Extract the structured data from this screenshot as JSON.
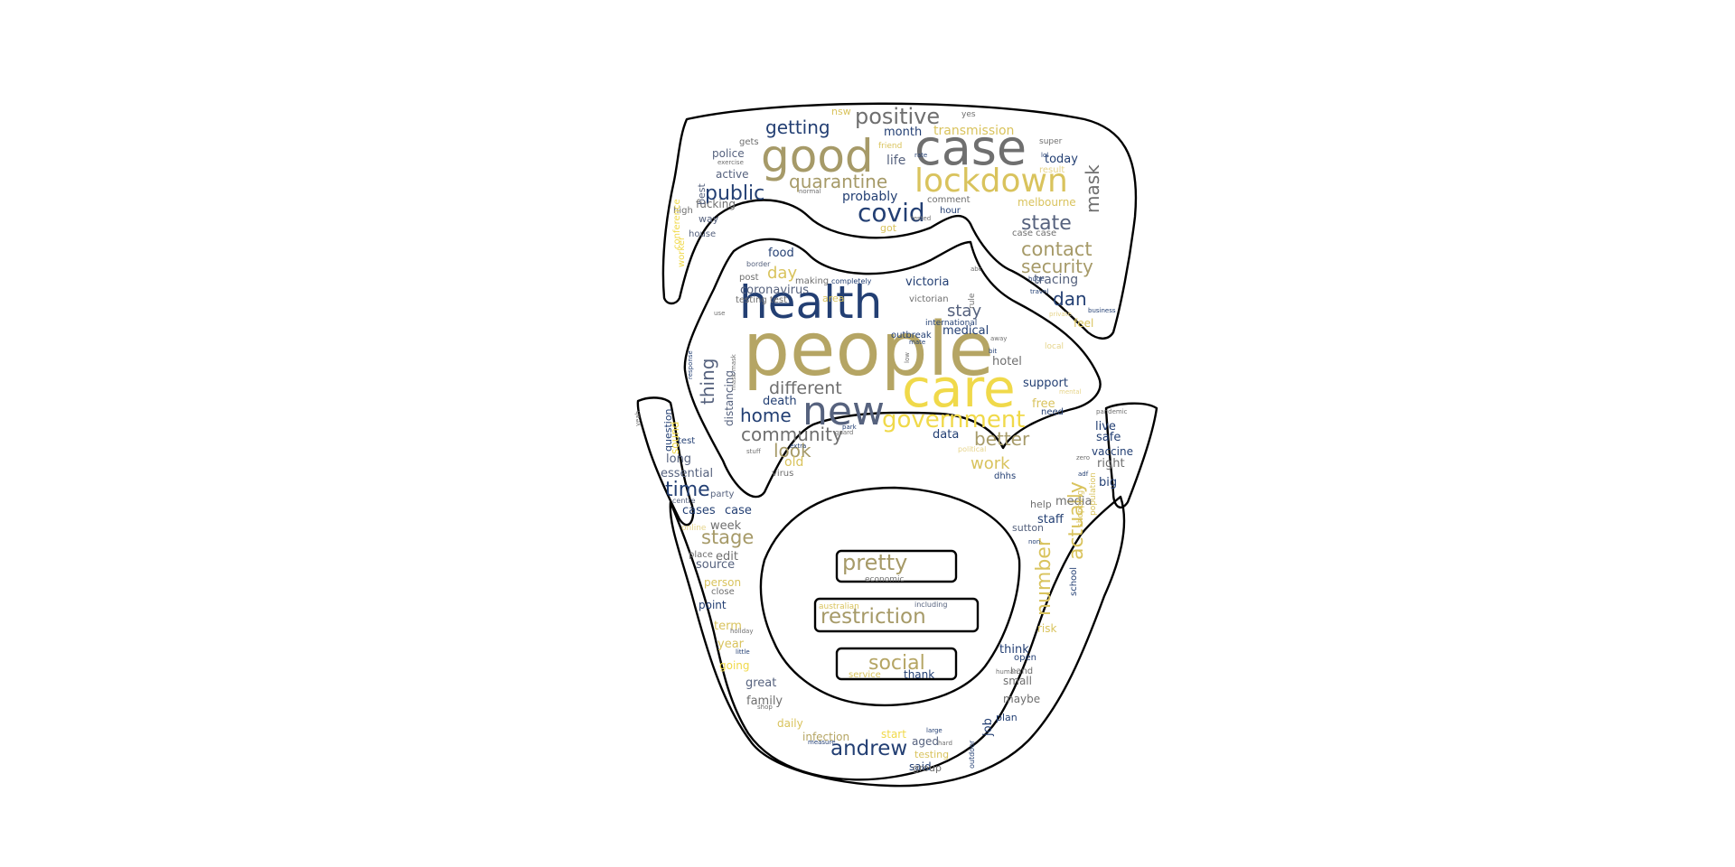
{
  "palette": {
    "navy": "#233f73",
    "slate": "#4f5a72",
    "gray": "#6f6f6f",
    "khaki": "#a69a68",
    "olive": "#b5a564",
    "gold": "#d9c35d",
    "yellow": "#f0d94a",
    "lightgold": "#e6d48a",
    "steel": "#56627e",
    "outline": "#000000",
    "background": "#ffffff"
  },
  "words": [
    {
      "text": "people",
      "c": "olive"
    },
    {
      "text": "health",
      "c": "navy"
    },
    {
      "text": "case",
      "c": "gray"
    },
    {
      "text": "care",
      "c": "yellow"
    },
    {
      "text": "good",
      "c": "khaki"
    },
    {
      "text": "new",
      "c": "steel"
    },
    {
      "text": "lockdown",
      "c": "gold"
    },
    {
      "text": "government",
      "c": "yellow"
    },
    {
      "text": "positive",
      "c": "gray"
    },
    {
      "text": "covid",
      "c": "navy"
    },
    {
      "text": "quarantine",
      "c": "khaki"
    },
    {
      "text": "public",
      "c": "navy"
    },
    {
      "text": "getting",
      "c": "navy"
    },
    {
      "text": "transmission",
      "c": "gold"
    },
    {
      "text": "state",
      "c": "steel"
    },
    {
      "text": "contact",
      "c": "khaki"
    },
    {
      "text": "security",
      "c": "khaki"
    },
    {
      "text": "mask",
      "c": "gray"
    },
    {
      "text": "dan",
      "c": "navy"
    },
    {
      "text": "different",
      "c": "gray"
    },
    {
      "text": "home",
      "c": "navy"
    },
    {
      "text": "community",
      "c": "gray"
    },
    {
      "text": "look",
      "c": "khaki"
    },
    {
      "text": "better",
      "c": "khaki"
    },
    {
      "text": "work",
      "c": "gold"
    },
    {
      "text": "thing",
      "c": "steel"
    },
    {
      "text": "stay",
      "c": "steel"
    },
    {
      "text": "day",
      "c": "gold"
    },
    {
      "text": "pretty",
      "c": "khaki"
    },
    {
      "text": "restriction",
      "c": "khaki"
    },
    {
      "text": "social",
      "c": "olive"
    },
    {
      "text": "andrew",
      "c": "navy"
    },
    {
      "text": "time",
      "c": "navy"
    },
    {
      "text": "stage",
      "c": "khaki"
    },
    {
      "text": "number",
      "c": "gold"
    },
    {
      "text": "actually",
      "c": "gold"
    },
    {
      "text": "month",
      "c": "navy"
    },
    {
      "text": "life",
      "c": "steel"
    },
    {
      "text": "probably",
      "c": "navy"
    },
    {
      "text": "melbourne",
      "c": "gold"
    },
    {
      "text": "today",
      "c": "navy"
    },
    {
      "text": "tracing",
      "c": "steel"
    },
    {
      "text": "victoria",
      "c": "navy"
    },
    {
      "text": "medical",
      "c": "navy"
    },
    {
      "text": "hotel",
      "c": "gray"
    },
    {
      "text": "support",
      "c": "navy"
    },
    {
      "text": "free",
      "c": "gold"
    },
    {
      "text": "death",
      "c": "navy"
    },
    {
      "text": "data",
      "c": "navy"
    },
    {
      "text": "old",
      "c": "gold"
    },
    {
      "text": "food",
      "c": "navy"
    },
    {
      "text": "coronavirus",
      "c": "steel"
    },
    {
      "text": "distancing",
      "c": "steel"
    },
    {
      "text": "essential",
      "c": "steel"
    },
    {
      "text": "long",
      "c": "steel"
    },
    {
      "text": "cases",
      "c": "navy"
    },
    {
      "text": "case",
      "c": "navy"
    },
    {
      "text": "week",
      "c": "gray"
    },
    {
      "text": "source",
      "c": "steel"
    },
    {
      "text": "edit",
      "c": "gray"
    },
    {
      "text": "person",
      "c": "gold"
    },
    {
      "text": "point",
      "c": "navy"
    },
    {
      "text": "term",
      "c": "gold"
    },
    {
      "text": "year",
      "c": "gold"
    },
    {
      "text": "going",
      "c": "yellow"
    },
    {
      "text": "great",
      "c": "steel"
    },
    {
      "text": "family",
      "c": "gray"
    },
    {
      "text": "daily",
      "c": "gold"
    },
    {
      "text": "infection",
      "c": "olive"
    },
    {
      "text": "start",
      "c": "yellow"
    },
    {
      "text": "aged",
      "c": "steel"
    },
    {
      "text": "said",
      "c": "navy"
    },
    {
      "text": "testing",
      "c": "gold"
    },
    {
      "text": "group",
      "c": "gray"
    },
    {
      "text": "job",
      "c": "navy"
    },
    {
      "text": "plan",
      "c": "navy"
    },
    {
      "text": "maybe",
      "c": "gray"
    },
    {
      "text": "small",
      "c": "gray"
    },
    {
      "text": "think",
      "c": "navy"
    },
    {
      "text": "risk",
      "c": "gold"
    },
    {
      "text": "open",
      "c": "navy"
    },
    {
      "text": "staff",
      "c": "navy"
    },
    {
      "text": "media",
      "c": "gray"
    },
    {
      "text": "big",
      "c": "navy"
    },
    {
      "text": "right",
      "c": "gray"
    },
    {
      "text": "vaccine",
      "c": "navy"
    },
    {
      "text": "safe",
      "c": "navy"
    },
    {
      "text": "live",
      "c": "navy"
    },
    {
      "text": "help",
      "c": "gray"
    },
    {
      "text": "school",
      "c": "navy"
    },
    {
      "text": "sutton",
      "c": "steel"
    },
    {
      "text": "feel",
      "c": "gold"
    },
    {
      "text": "question",
      "c": "navy"
    },
    {
      "text": "sound",
      "c": "yellow"
    },
    {
      "text": "test",
      "c": "navy"
    },
    {
      "text": "party",
      "c": "steel"
    },
    {
      "text": "virus",
      "c": "gray"
    },
    {
      "text": "dhhs",
      "c": "navy"
    },
    {
      "text": "police",
      "c": "steel"
    },
    {
      "text": "active",
      "c": "steel"
    },
    {
      "text": "fucking",
      "c": "gray"
    },
    {
      "text": "way",
      "c": "steel"
    },
    {
      "text": "best",
      "c": "steel"
    },
    {
      "text": "high",
      "c": "gray"
    },
    {
      "text": "house",
      "c": "steel"
    },
    {
      "text": "worker",
      "c": "yellow"
    },
    {
      "text": "conference",
      "c": "yellow"
    },
    {
      "text": "gets",
      "c": "gray"
    },
    {
      "text": "nsw",
      "c": "gold"
    },
    {
      "text": "yes",
      "c": "gray"
    },
    {
      "text": "super",
      "c": "gray"
    },
    {
      "text": "result",
      "c": "lightgold"
    },
    {
      "text": "hour",
      "c": "navy"
    },
    {
      "text": "comment",
      "c": "gray"
    },
    {
      "text": "got",
      "c": "gold"
    },
    {
      "text": "friend",
      "c": "gold"
    },
    {
      "text": "area",
      "c": "gold"
    },
    {
      "text": "testing test",
      "c": "gray"
    },
    {
      "text": "outbreak",
      "c": "navy"
    },
    {
      "text": "victorian",
      "c": "gray"
    },
    {
      "text": "international",
      "c": "navy"
    },
    {
      "text": "rule",
      "c": "gray"
    },
    {
      "text": "post",
      "c": "gray"
    },
    {
      "text": "making",
      "c": "gray"
    },
    {
      "text": "completely",
      "c": "navy"
    },
    {
      "text": "border",
      "c": "steel"
    },
    {
      "text": "need",
      "c": "navy"
    },
    {
      "text": "local",
      "c": "lightgold"
    },
    {
      "text": "economic",
      "c": "gray"
    },
    {
      "text": "australian",
      "c": "gold"
    },
    {
      "text": "including",
      "c": "steel"
    },
    {
      "text": "service",
      "c": "gold"
    },
    {
      "text": "thank",
      "c": "navy"
    },
    {
      "text": "close",
      "c": "gray"
    },
    {
      "text": "place",
      "c": "gray"
    },
    {
      "text": "online",
      "c": "lightgold"
    },
    {
      "text": "centre",
      "c": "steel"
    },
    {
      "text": "little",
      "c": "navy"
    },
    {
      "text": "holiday",
      "c": "gray"
    },
    {
      "text": "shop",
      "c": "gray"
    },
    {
      "text": "measure",
      "c": "navy"
    },
    {
      "text": "large",
      "c": "navy"
    },
    {
      "text": "hard",
      "c": "gray"
    },
    {
      "text": "outdoor",
      "c": "navy"
    },
    {
      "text": "human",
      "c": "gray"
    },
    {
      "text": "hand",
      "c": "gray"
    },
    {
      "text": "non",
      "c": "navy"
    },
    {
      "text": "shopping",
      "c": "gold"
    },
    {
      "text": "population",
      "c": "gold"
    },
    {
      "text": "pandemic",
      "c": "gray"
    },
    {
      "text": "adf",
      "c": "navy"
    },
    {
      "text": "zero",
      "c": "gray"
    },
    {
      "text": "travel",
      "c": "navy"
    },
    {
      "text": "huge",
      "c": "navy"
    },
    {
      "text": "private",
      "c": "lightgold"
    },
    {
      "text": "business",
      "c": "navy"
    },
    {
      "text": "case case",
      "c": "gray"
    },
    {
      "text": "political",
      "c": "lightgold"
    },
    {
      "text": "stuff",
      "c": "gray"
    },
    {
      "text": "extra",
      "c": "navy"
    },
    {
      "text": "guard",
      "c": "gray"
    },
    {
      "text": "park",
      "c": "navy"
    },
    {
      "text": "low",
      "c": "gray"
    },
    {
      "text": "mate",
      "c": "navy"
    },
    {
      "text": "bit",
      "c": "navy"
    },
    {
      "text": "away",
      "c": "gray"
    },
    {
      "text": "abc",
      "c": "gray"
    },
    {
      "text": "yeah",
      "c": "gray"
    },
    {
      "text": "normal",
      "c": "gray"
    },
    {
      "text": "exercise",
      "c": "gray"
    },
    {
      "text": "lol",
      "c": "navy"
    },
    {
      "text": "rate",
      "c": "navy"
    },
    {
      "text": "tested",
      "c": "gray"
    },
    {
      "text": "mental",
      "c": "lightgold"
    },
    {
      "text": "response",
      "c": "navy"
    },
    {
      "text": "mask mask",
      "c": "gray"
    },
    {
      "text": "use",
      "c": "gray"
    }
  ]
}
